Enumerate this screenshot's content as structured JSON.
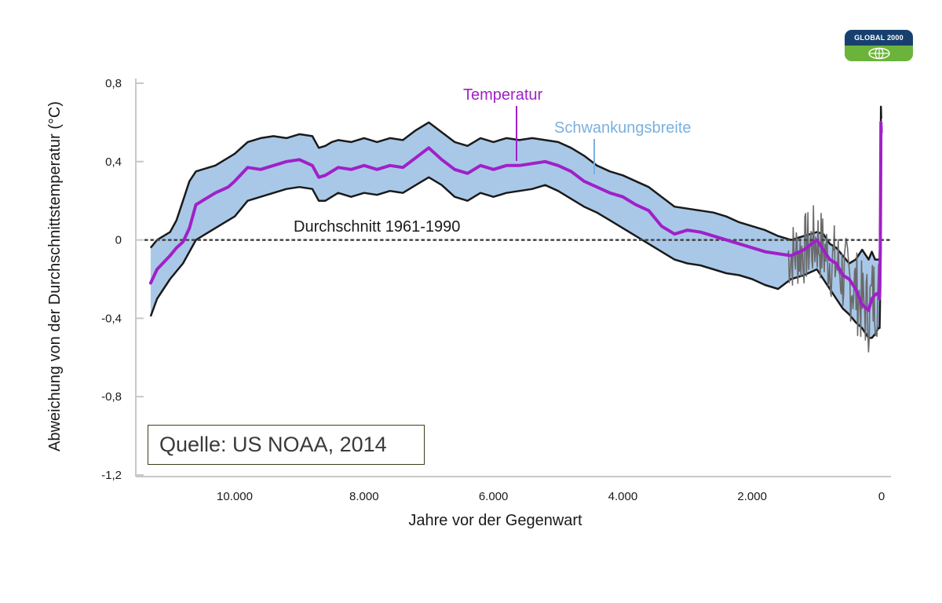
{
  "logo": {
    "text": "GLOBAL 2000",
    "icon": "globe-icon"
  },
  "source": {
    "label": "Quelle: US NOAA, 2014"
  },
  "colors": {
    "band": "#a9c8e8",
    "band_edge": "#1a1a1a",
    "temperature": "#a020c8",
    "instrumental": "#6a6a6a",
    "baseline": "#444444",
    "source_box_border": "#3d3d1c"
  },
  "chart_data": {
    "type": "line",
    "title": "",
    "xlabel": "Jahre vor der Gegenwart",
    "ylabel": "Abweichung von der Durchschnittstemperatur (°C)",
    "xlim": [
      11400,
      -150
    ],
    "ylim": [
      -1.2,
      0.85
    ],
    "x_reversed": true,
    "x_ticks": [
      10000,
      8000,
      6000,
      4000,
      2000,
      0
    ],
    "x_tick_labels": [
      "10.000",
      "8.000",
      "6.000",
      "4.000",
      "2.000",
      "0"
    ],
    "y_ticks": [
      0.8,
      0.4,
      0,
      -0.4,
      -0.8,
      -1.2
    ],
    "y_tick_labels": [
      "0,8",
      "0,4",
      "0",
      "-0,4",
      "-0,8",
      "-1,2"
    ],
    "annotations": {
      "temperature": "Temperatur",
      "range": "Schwankungsbreite",
      "baseline": "Durchschnitt 1961-1990"
    },
    "baseline": {
      "y": 0
    },
    "series": [
      {
        "name": "Temperatur",
        "x": [
          11300,
          11200,
          11000,
          10900,
          10800,
          10700,
          10600,
          10500,
          10300,
          10100,
          10000,
          9800,
          9600,
          9400,
          9200,
          9000,
          8800,
          8700,
          8600,
          8500,
          8400,
          8200,
          8000,
          7800,
          7600,
          7400,
          7200,
          7000,
          6800,
          6600,
          6400,
          6200,
          6000,
          5800,
          5600,
          5400,
          5200,
          5000,
          4800,
          4600,
          4400,
          4200,
          4000,
          3800,
          3600,
          3400,
          3200,
          3000,
          2800,
          2600,
          2400,
          2200,
          2000,
          1800,
          1600,
          1400,
          1200,
          1000,
          900,
          800,
          700,
          600,
          500,
          400,
          300,
          200,
          150,
          100,
          50,
          30,
          20,
          15,
          10,
          5
        ],
        "y": [
          -0.22,
          -0.15,
          -0.08,
          -0.04,
          -0.01,
          0.06,
          0.18,
          0.2,
          0.24,
          0.27,
          0.3,
          0.37,
          0.36,
          0.38,
          0.4,
          0.41,
          0.38,
          0.32,
          0.33,
          0.35,
          0.37,
          0.36,
          0.38,
          0.36,
          0.38,
          0.37,
          0.42,
          0.47,
          0.41,
          0.36,
          0.34,
          0.38,
          0.36,
          0.38,
          0.38,
          0.39,
          0.4,
          0.38,
          0.35,
          0.3,
          0.27,
          0.24,
          0.22,
          0.18,
          0.15,
          0.07,
          0.03,
          0.05,
          0.04,
          0.02,
          0.0,
          -0.02,
          -0.04,
          -0.06,
          -0.07,
          -0.08,
          -0.05,
          0.0,
          -0.05,
          -0.1,
          -0.12,
          -0.18,
          -0.2,
          -0.25,
          -0.33,
          -0.36,
          -0.3,
          -0.28,
          -0.27,
          -0.3,
          -0.05,
          0.25,
          0.6,
          0.55
        ]
      },
      {
        "name": "Schwankungsbreite",
        "x": [
          11300,
          11200,
          11000,
          10900,
          10800,
          10700,
          10600,
          10500,
          10300,
          10100,
          10000,
          9800,
          9600,
          9400,
          9200,
          9000,
          8800,
          8700,
          8600,
          8500,
          8400,
          8200,
          8000,
          7800,
          7600,
          7400,
          7200,
          7000,
          6800,
          6600,
          6400,
          6200,
          6000,
          5800,
          5600,
          5400,
          5200,
          5000,
          4800,
          4600,
          4400,
          4200,
          4000,
          3800,
          3600,
          3400,
          3200,
          3000,
          2800,
          2600,
          2400,
          2200,
          2000,
          1800,
          1600,
          1400,
          1200,
          1000,
          900,
          800,
          700,
          600,
          500,
          400,
          300,
          200,
          150,
          100,
          50,
          30,
          20,
          15,
          10,
          5
        ],
        "upper": [
          -0.04,
          0.0,
          0.04,
          0.1,
          0.2,
          0.3,
          0.35,
          0.36,
          0.38,
          0.42,
          0.44,
          0.5,
          0.52,
          0.53,
          0.52,
          0.54,
          0.53,
          0.47,
          0.48,
          0.5,
          0.51,
          0.5,
          0.52,
          0.5,
          0.52,
          0.51,
          0.56,
          0.6,
          0.55,
          0.5,
          0.48,
          0.52,
          0.5,
          0.52,
          0.51,
          0.52,
          0.51,
          0.5,
          0.47,
          0.43,
          0.38,
          0.35,
          0.33,
          0.3,
          0.27,
          0.22,
          0.17,
          0.16,
          0.15,
          0.14,
          0.12,
          0.09,
          0.07,
          0.05,
          0.02,
          0.0,
          0.02,
          0.04,
          0.03,
          -0.02,
          -0.04,
          -0.08,
          -0.12,
          -0.1,
          -0.05,
          -0.1,
          -0.06,
          -0.1,
          -0.1,
          -0.1,
          0.1,
          0.4,
          0.68,
          0.62
        ],
        "lower": [
          -0.39,
          -0.3,
          -0.2,
          -0.16,
          -0.12,
          -0.06,
          0.0,
          0.02,
          0.06,
          0.1,
          0.12,
          0.2,
          0.22,
          0.24,
          0.26,
          0.27,
          0.26,
          0.2,
          0.2,
          0.22,
          0.24,
          0.22,
          0.24,
          0.23,
          0.25,
          0.24,
          0.28,
          0.32,
          0.28,
          0.22,
          0.2,
          0.24,
          0.22,
          0.24,
          0.25,
          0.26,
          0.28,
          0.25,
          0.21,
          0.17,
          0.14,
          0.1,
          0.06,
          0.02,
          -0.02,
          -0.06,
          -0.1,
          -0.12,
          -0.13,
          -0.15,
          -0.17,
          -0.18,
          -0.2,
          -0.23,
          -0.25,
          -0.2,
          -0.18,
          -0.15,
          -0.2,
          -0.25,
          -0.3,
          -0.35,
          -0.38,
          -0.42,
          -0.45,
          -0.5,
          -0.5,
          -0.48,
          -0.45,
          -0.45,
          -0.25,
          0.05,
          0.45,
          0.4
        ]
      }
    ]
  }
}
